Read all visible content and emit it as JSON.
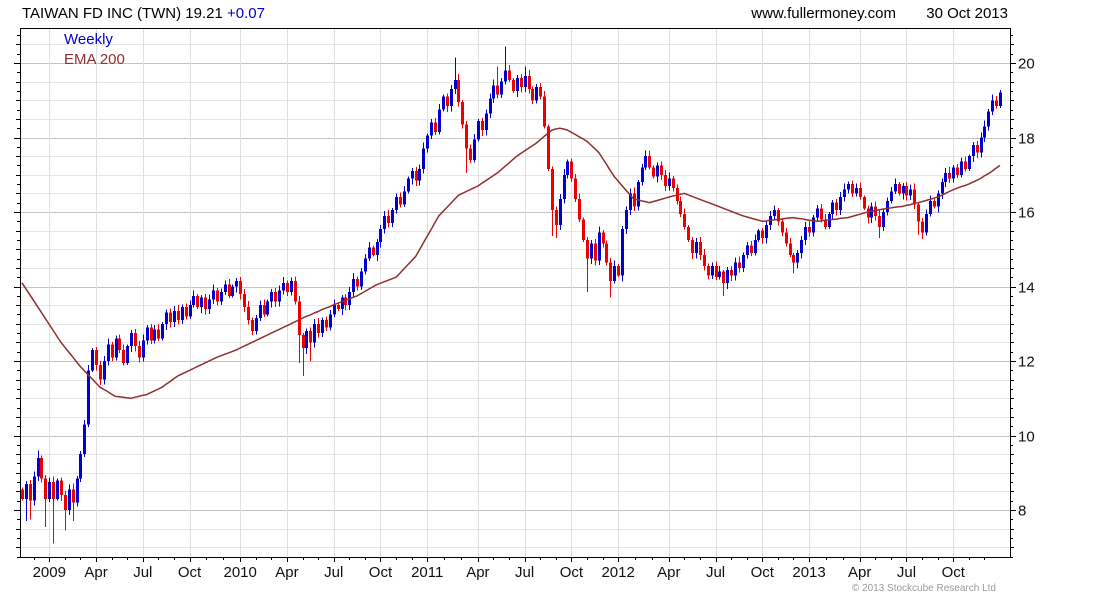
{
  "header": {
    "title": "TAIWAN FD INC (TWN) 19.21",
    "change": "+0.07",
    "website": "www.fullermoney.com",
    "date": "30 Oct 2013"
  },
  "legend": {
    "series": "Weekly",
    "overlay": "EMA 200"
  },
  "footer": {
    "copyright": "© 2013 Stockcube Research Ltd"
  },
  "colors": {
    "up": "#0000d0",
    "down": "#ee0000",
    "ema": "#8f2f2f",
    "grid_minor": "#e6e6e6",
    "grid_major": "#c4c4c4",
    "grid_vert": "#e0e0e0",
    "axis": "#000000",
    "label": "#111111",
    "change_text": "#0000cc",
    "copyright_text": "#9a9a9a"
  },
  "chart_data": {
    "type": "candlestick",
    "period": "weekly",
    "series_name": "Weekly",
    "overlay_name": "EMA 200",
    "title": "TAIWAN FD INC (TWN)",
    "last_price": 19.21,
    "change": "+0.07",
    "y_axis": {
      "min": 6.74,
      "max": 20.94,
      "tick_labels": [
        8,
        10,
        12,
        14,
        16,
        18,
        20
      ],
      "minor_tick_step": 0.25,
      "grid_step": 0.5,
      "major_step": 2
    },
    "x_labels": [
      {
        "label": "2009",
        "week": 7
      },
      {
        "label": "Apr",
        "week": 19
      },
      {
        "label": "Jul",
        "week": 31
      },
      {
        "label": "Oct",
        "week": 43
      },
      {
        "label": "2010",
        "week": 56
      },
      {
        "label": "Apr",
        "week": 68
      },
      {
        "label": "Jul",
        "week": 80
      },
      {
        "label": "Oct",
        "week": 92
      },
      {
        "label": "2011",
        "week": 104
      },
      {
        "label": "Apr",
        "week": 117
      },
      {
        "label": "Jul",
        "week": 129
      },
      {
        "label": "Oct",
        "week": 141
      },
      {
        "label": "2012",
        "week": 153
      },
      {
        "label": "Apr",
        "week": 166
      },
      {
        "label": "Jul",
        "week": 178
      },
      {
        "label": "Oct",
        "week": 190
      },
      {
        "label": "2013",
        "week": 202
      },
      {
        "label": "Apr",
        "week": 215
      },
      {
        "label": "Jul",
        "week": 227
      },
      {
        "label": "Oct",
        "week": 239
      }
    ],
    "weeks": 252,
    "open_first": 8.55,
    "closes": [
      8.3,
      8.7,
      8.25,
      8.9,
      9.4,
      8.85,
      8.3,
      8.75,
      8.3,
      8.8,
      8.4,
      8.0,
      8.55,
      8.2,
      8.85,
      9.5,
      10.3,
      11.75,
      12.3,
      11.9,
      11.5,
      12.0,
      12.45,
      12.1,
      12.6,
      12.3,
      11.95,
      12.4,
      12.75,
      12.4,
      12.1,
      12.55,
      12.9,
      12.55,
      12.85,
      12.6,
      13.0,
      13.3,
      13.05,
      13.35,
      13.1,
      13.45,
      13.2,
      13.5,
      13.75,
      13.45,
      13.7,
      13.4,
      13.65,
      13.9,
      13.6,
      13.85,
      14.05,
      13.75,
      14.0,
      14.15,
      13.8,
      13.45,
      13.1,
      12.8,
      13.15,
      13.5,
      13.25,
      13.6,
      13.85,
      13.6,
      13.9,
      14.1,
      13.85,
      14.15,
      13.6,
      12.7,
      12.35,
      12.8,
      12.5,
      13.0,
      12.75,
      13.1,
      12.9,
      13.25,
      13.5,
      13.4,
      13.7,
      13.5,
      13.85,
      14.2,
      14.0,
      14.4,
      14.75,
      15.05,
      14.85,
      15.2,
      15.55,
      15.9,
      15.7,
      16.05,
      16.4,
      16.2,
      16.55,
      16.9,
      17.1,
      16.85,
      17.15,
      17.7,
      18.05,
      18.4,
      18.15,
      18.75,
      19.1,
      18.85,
      19.3,
      19.55,
      18.95,
      18.35,
      17.7,
      17.4,
      17.95,
      18.45,
      18.2,
      18.65,
      19.05,
      19.4,
      19.15,
      19.5,
      19.8,
      19.55,
      19.25,
      19.6,
      19.35,
      19.65,
      19.3,
      19.0,
      19.35,
      19.1,
      18.3,
      17.15,
      16.05,
      15.65,
      16.35,
      17.0,
      17.35,
      16.9,
      16.35,
      15.8,
      15.25,
      14.75,
      15.15,
      14.7,
      15.45,
      15.15,
      14.65,
      14.15,
      14.55,
      14.3,
      15.55,
      16.05,
      16.5,
      16.15,
      16.8,
      17.2,
      17.5,
      17.2,
      16.95,
      17.25,
      17.0,
      16.7,
      16.9,
      16.65,
      16.3,
      15.95,
      15.6,
      15.25,
      14.9,
      15.2,
      14.85,
      14.55,
      14.3,
      14.55,
      14.25,
      14.4,
      14.1,
      14.45,
      14.3,
      14.65,
      14.5,
      14.85,
      15.1,
      14.9,
      15.25,
      15.5,
      15.3,
      15.65,
      15.9,
      16.05,
      15.75,
      15.45,
      15.15,
      14.85,
      14.65,
      14.9,
      15.25,
      15.6,
      15.45,
      15.85,
      16.1,
      15.8,
      15.6,
      15.95,
      16.25,
      16.05,
      16.4,
      16.6,
      16.75,
      16.5,
      16.65,
      16.4,
      16.1,
      15.85,
      16.15,
      15.9,
      15.6,
      16.0,
      16.3,
      16.55,
      16.75,
      16.5,
      16.7,
      16.45,
      16.6,
      16.2,
      15.75,
      15.45,
      15.95,
      16.3,
      16.15,
      16.5,
      16.8,
      17.05,
      16.9,
      17.2,
      17.0,
      17.35,
      17.15,
      17.5,
      17.8,
      17.6,
      18.0,
      18.3,
      18.7,
      19.0,
      18.85,
      19.21
    ],
    "ema": [
      14.1,
      13.94,
      13.78,
      13.62,
      13.46,
      13.3,
      13.14,
      12.98,
      12.82,
      12.66,
      12.5,
      12.37,
      12.24,
      12.11,
      11.98,
      11.85,
      11.74,
      11.63,
      11.52,
      11.41,
      11.3,
      11.24,
      11.18,
      11.11,
      11.05,
      11.04,
      11.03,
      11.01,
      11.0,
      11.03,
      11.05,
      11.08,
      11.1,
      11.15,
      11.2,
      11.25,
      11.3,
      11.38,
      11.45,
      11.53,
      11.6,
      11.65,
      11.7,
      11.75,
      11.8,
      11.85,
      11.9,
      11.95,
      12.0,
      12.05,
      12.1,
      12.14,
      12.18,
      12.22,
      12.26,
      12.3,
      12.35,
      12.4,
      12.45,
      12.5,
      12.55,
      12.6,
      12.65,
      12.7,
      12.75,
      12.8,
      12.85,
      12.9,
      12.95,
      13.0,
      13.05,
      13.1,
      13.15,
      13.2,
      13.24,
      13.29,
      13.33,
      13.38,
      13.42,
      13.46,
      13.51,
      13.55,
      13.59,
      13.63,
      13.67,
      13.71,
      13.75,
      13.81,
      13.87,
      13.93,
      13.99,
      14.05,
      14.09,
      14.13,
      14.17,
      14.21,
      14.25,
      14.36,
      14.47,
      14.58,
      14.69,
      14.8,
      14.98,
      15.17,
      15.35,
      15.53,
      15.72,
      15.9,
      16.01,
      16.12,
      16.23,
      16.34,
      16.45,
      16.5,
      16.55,
      16.6,
      16.65,
      16.7,
      16.77,
      16.84,
      16.91,
      16.98,
      17.05,
      17.14,
      17.23,
      17.32,
      17.41,
      17.5,
      17.57,
      17.64,
      17.71,
      17.78,
      17.85,
      17.94,
      18.03,
      18.11,
      18.2,
      18.23,
      18.25,
      18.23,
      18.2,
      18.14,
      18.08,
      18.02,
      17.96,
      17.9,
      17.8,
      17.7,
      17.6,
      17.44,
      17.28,
      17.11,
      16.95,
      16.83,
      16.71,
      16.59,
      16.47,
      16.35,
      16.33,
      16.3,
      16.28,
      16.25,
      16.28,
      16.31,
      16.34,
      16.37,
      16.4,
      16.43,
      16.45,
      16.48,
      16.5,
      16.46,
      16.42,
      16.38,
      16.34,
      16.3,
      16.26,
      16.22,
      16.18,
      16.14,
      16.1,
      16.06,
      16.02,
      15.98,
      15.94,
      15.9,
      15.87,
      15.84,
      15.81,
      15.78,
      15.75,
      15.76,
      15.78,
      15.79,
      15.8,
      15.81,
      15.83,
      15.84,
      15.85,
      15.83,
      15.82,
      15.8,
      15.78,
      15.77,
      15.75,
      15.76,
      15.78,
      15.79,
      15.8,
      15.81,
      15.83,
      15.84,
      15.85,
      15.88,
      15.91,
      15.94,
      15.97,
      16.0,
      16.02,
      16.04,
      16.06,
      16.08,
      16.1,
      16.11,
      16.13,
      16.14,
      16.15,
      16.18,
      16.2,
      16.23,
      16.25,
      16.28,
      16.31,
      16.34,
      16.37,
      16.4,
      16.45,
      16.5,
      16.55,
      16.6,
      16.64,
      16.68,
      16.71,
      16.75,
      16.8,
      16.85,
      16.9,
      16.97,
      17.03,
      17.1,
      17.18,
      17.25
    ],
    "wick_lows": {
      "1": 7.7,
      "2": 7.75,
      "6": 7.55,
      "8": 7.1,
      "11": 7.45,
      "13": 7.7,
      "71": 11.95,
      "72": 11.6,
      "74": 12.0,
      "114": 17.05,
      "136": 15.35,
      "137": 15.3,
      "145": 13.85,
      "151": 13.7,
      "180": 13.75,
      "198": 14.35,
      "220": 15.3,
      "230": 15.38,
      "231": 15.28
    },
    "wick_highs": {
      "4": 9.6,
      "111": 20.15,
      "122": 19.9,
      "124": 20.45,
      "129": 19.9,
      "160": 17.65,
      "193": 16.18,
      "249": 19.15,
      "251": 19.27
    }
  }
}
